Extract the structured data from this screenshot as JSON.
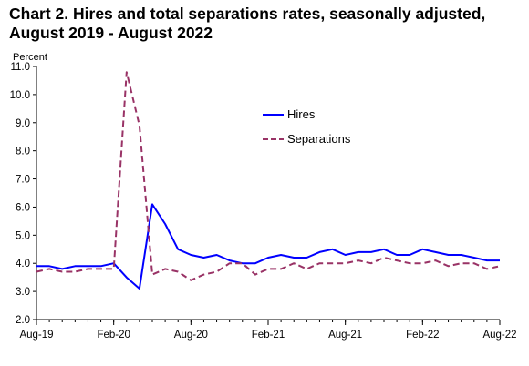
{
  "chart_data": {
    "type": "line",
    "title_lines": [
      "Chart 2. Hires and total separations rates, seasonally adjusted,",
      "August 2019 - August 2022"
    ],
    "ylabel": "Percent",
    "ylim": [
      2.0,
      11.0
    ],
    "yticks": [
      "2.0",
      "3.0",
      "4.0",
      "5.0",
      "6.0",
      "7.0",
      "8.0",
      "9.0",
      "10.0",
      "11.0"
    ],
    "xticks": [
      {
        "label": "Aug-19",
        "index": 0
      },
      {
        "label": "Feb-20",
        "index": 6
      },
      {
        "label": "Aug-20",
        "index": 12
      },
      {
        "label": "Feb-21",
        "index": 18
      },
      {
        "label": "Aug-21",
        "index": 24
      },
      {
        "label": "Feb-22",
        "index": 30
      },
      {
        "label": "Aug-22",
        "index": 36
      }
    ],
    "x": [
      "Aug-19",
      "Sep-19",
      "Oct-19",
      "Nov-19",
      "Dec-19",
      "Jan-20",
      "Feb-20",
      "Mar-20",
      "Apr-20",
      "May-20",
      "Jun-20",
      "Jul-20",
      "Aug-20",
      "Sep-20",
      "Oct-20",
      "Nov-20",
      "Dec-20",
      "Jan-21",
      "Feb-21",
      "Mar-21",
      "Apr-21",
      "May-21",
      "Jun-21",
      "Jul-21",
      "Aug-21",
      "Sep-21",
      "Oct-21",
      "Nov-21",
      "Dec-21",
      "Jan-22",
      "Feb-22",
      "Mar-22",
      "Apr-22",
      "May-22",
      "Jun-22",
      "Jul-22",
      "Aug-22"
    ],
    "series": [
      {
        "name": "Hires",
        "color": "#0000ff",
        "style": "solid",
        "values": [
          3.9,
          3.9,
          3.8,
          3.9,
          3.9,
          3.9,
          4.0,
          3.5,
          3.1,
          6.1,
          5.4,
          4.5,
          4.3,
          4.2,
          4.3,
          4.1,
          4.0,
          4.0,
          4.2,
          4.3,
          4.2,
          4.2,
          4.4,
          4.5,
          4.3,
          4.4,
          4.4,
          4.5,
          4.3,
          4.3,
          4.5,
          4.4,
          4.3,
          4.3,
          4.2,
          4.1,
          4.1
        ]
      },
      {
        "name": "Separations",
        "color": "#993366",
        "style": "dashed",
        "values": [
          3.7,
          3.8,
          3.7,
          3.7,
          3.8,
          3.8,
          3.8,
          10.8,
          8.9,
          3.6,
          3.8,
          3.7,
          3.4,
          3.6,
          3.7,
          4.0,
          4.0,
          3.6,
          3.8,
          3.8,
          4.0,
          3.8,
          4.0,
          4.0,
          4.0,
          4.1,
          4.0,
          4.2,
          4.1,
          4.0,
          4.0,
          4.1,
          3.9,
          4.0,
          4.0,
          3.8,
          3.9
        ]
      }
    ],
    "legend_position": "upper-right",
    "grid": false
  }
}
